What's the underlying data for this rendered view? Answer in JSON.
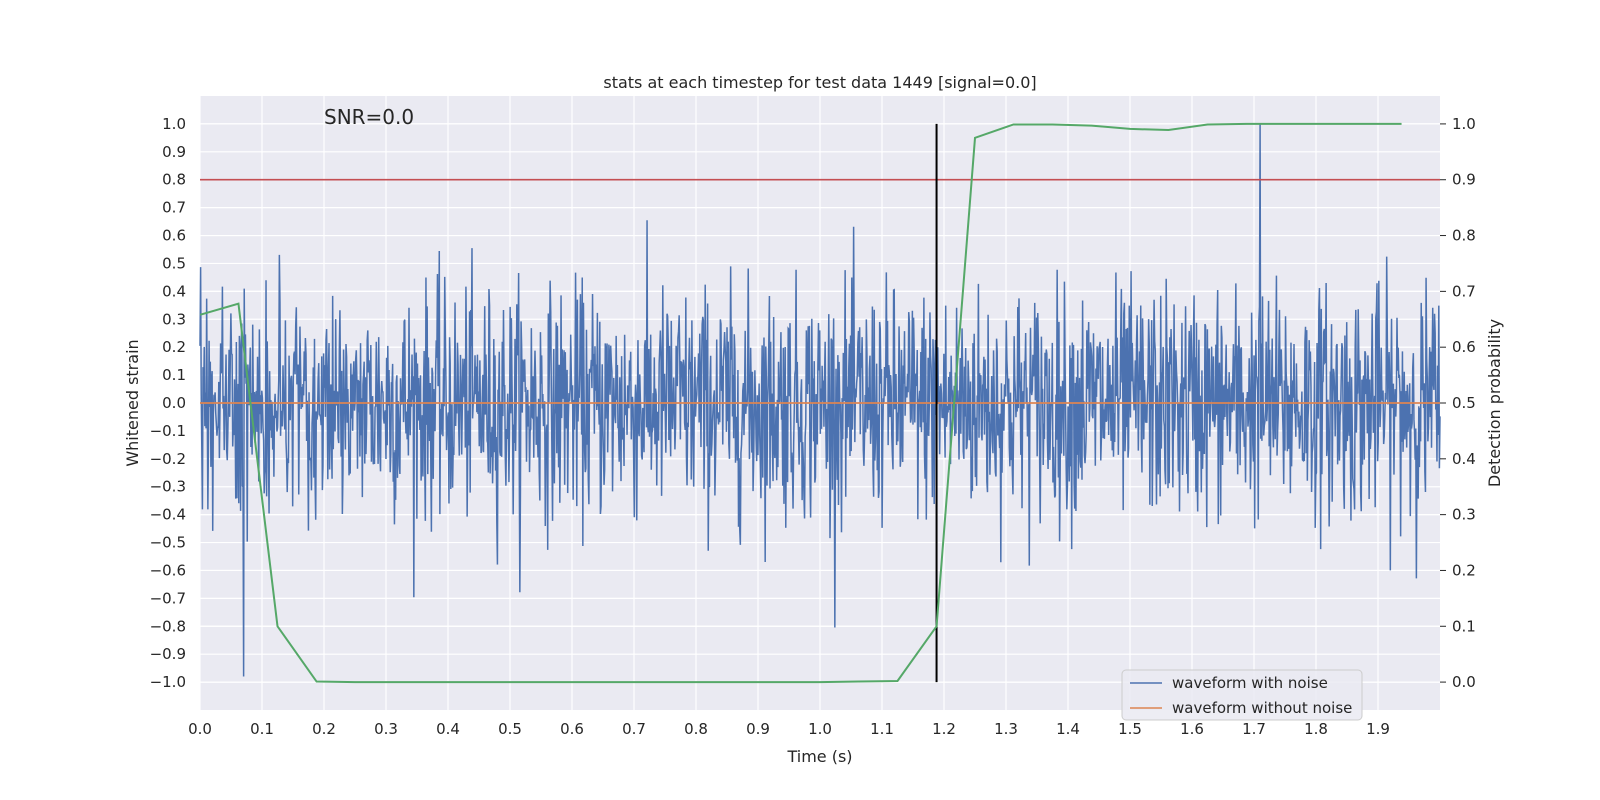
{
  "chart_data": {
    "type": "line",
    "title": "stats at each timestep for test data 1449 [signal=0.0]",
    "xlabel": "Time (s)",
    "ylabel": "Whitened strain",
    "y2label": "Detection probability",
    "xlim": [
      0.0,
      2.0
    ],
    "ylim": [
      -1.1,
      1.1
    ],
    "y2lim": [
      -0.05,
      1.05
    ],
    "x_ticks": [
      "0.0",
      "0.1",
      "0.2",
      "0.3",
      "0.4",
      "0.5",
      "0.6",
      "0.7",
      "0.8",
      "0.9",
      "1.0",
      "1.1",
      "1.2",
      "1.3",
      "1.4",
      "1.5",
      "1.6",
      "1.7",
      "1.8",
      "1.9"
    ],
    "y_ticks": [
      "1.0",
      "0.9",
      "0.8",
      "0.7",
      "0.6",
      "0.5",
      "0.4",
      "0.3",
      "0.2",
      "0.1",
      "0.0",
      "−0.1",
      "−0.2",
      "−0.3",
      "−0.4",
      "−0.5",
      "−0.6",
      "−0.7",
      "−0.8",
      "−0.9",
      "−1.0"
    ],
    "y2_ticks": [
      "1.0",
      "0.9",
      "0.8",
      "0.7",
      "0.6",
      "0.5",
      "0.4",
      "0.3",
      "0.2",
      "0.1",
      "0.0"
    ],
    "grid": true,
    "legend_position": "lower-right",
    "annotation": "SNR=0.0",
    "series": [
      {
        "name": "waveform with noise",
        "color": "#4c72b0",
        "axis": "left",
        "kind": "noise",
        "x_range": [
          0.0,
          2.0
        ],
        "sample_count": 2048,
        "approx_std": 0.2,
        "approx_min": -0.98,
        "approx_max": 1.0,
        "peak": {
          "x": 1.71,
          "y": 1.0
        },
        "dip": {
          "x": 0.07,
          "y": -0.98
        }
      },
      {
        "name": "waveform without noise",
        "color": "#dd8452",
        "axis": "left",
        "x": [
          0.0,
          2.0
        ],
        "y": [
          0.0,
          0.0
        ]
      },
      {
        "name": "detection probability",
        "color": "#55a868",
        "axis": "right",
        "x": [
          0.0,
          0.062,
          0.125,
          0.188,
          0.25,
          0.312,
          0.375,
          0.438,
          0.5,
          0.562,
          0.625,
          0.688,
          0.75,
          0.812,
          0.875,
          0.938,
          1.0,
          1.062,
          1.125,
          1.188,
          1.25,
          1.312,
          1.375,
          1.438,
          1.5,
          1.562,
          1.625,
          1.688,
          1.75,
          1.812,
          1.875,
          1.938
        ],
        "y": [
          0.658,
          0.678,
          0.1,
          0.001,
          0.0,
          0.0,
          0.0,
          0.0,
          0.0,
          0.0,
          0.0,
          0.0,
          0.0,
          0.0,
          0.0,
          0.0,
          0.0,
          0.001,
          0.002,
          0.1,
          0.975,
          0.999,
          0.999,
          0.997,
          0.991,
          0.989,
          0.999,
          1.0,
          1.0,
          1.0,
          1.0,
          1.0
        ]
      }
    ],
    "threshold_line": {
      "y2": 0.9,
      "color": "#c44e52"
    },
    "vertical_line": {
      "x": 1.188,
      "y_range": [
        -1.0,
        1.0
      ],
      "color": "#000000"
    }
  }
}
